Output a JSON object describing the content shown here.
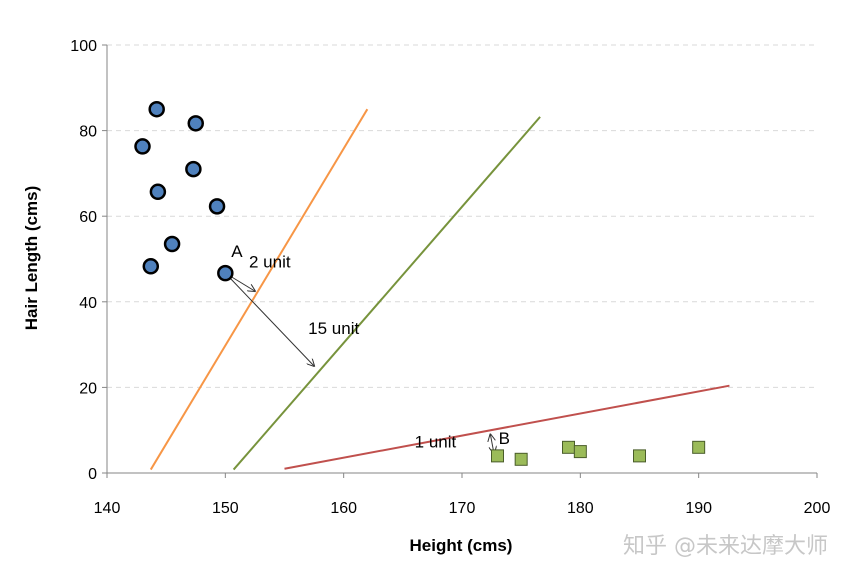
{
  "chart_data": {
    "type": "scatter",
    "xlabel": "Height (cms)",
    "ylabel": "Hair Length (cms)",
    "xlim": [
      140,
      200
    ],
    "ylim": [
      0,
      100
    ],
    "x_ticks": [
      "140",
      "150",
      "160",
      "170",
      "180",
      "190",
      "200"
    ],
    "y_ticks": [
      "0",
      "20",
      "40",
      "60",
      "80",
      "100"
    ],
    "grid": "horizontal dashed",
    "legend": "none",
    "series": [
      {
        "marker": "circle",
        "color": "#4f81bd",
        "points": [
          {
            "x": 144.2,
            "y": 85.0
          },
          {
            "x": 147.5,
            "y": 81.7
          },
          {
            "x": 143.0,
            "y": 76.3
          },
          {
            "x": 147.3,
            "y": 71.0
          },
          {
            "x": 144.3,
            "y": 65.7
          },
          {
            "x": 149.3,
            "y": 62.3
          },
          {
            "x": 145.5,
            "y": 53.5
          },
          {
            "x": 143.7,
            "y": 48.3
          },
          {
            "x": 150.0,
            "y": 46.7
          }
        ]
      },
      {
        "marker": "square",
        "color": "#9bbb59",
        "points": [
          {
            "x": 173.0,
            "y": 4.0
          },
          {
            "x": 175.0,
            "y": 3.2
          },
          {
            "x": 179.0,
            "y": 6.0
          },
          {
            "x": 180.0,
            "y": 5.0
          },
          {
            "x": 185.0,
            "y": 4.0
          },
          {
            "x": 190.0,
            "y": 6.0
          }
        ]
      }
    ],
    "lines": [
      {
        "color": "#f79646",
        "from": [
          143.7,
          0.8
        ],
        "to": [
          162.0,
          85.0
        ]
      },
      {
        "color": "#77933c",
        "from": [
          150.7,
          0.8
        ],
        "to": [
          176.6,
          83.2
        ]
      },
      {
        "color": "#c0504d",
        "from": [
          155.0,
          1.0
        ],
        "to": [
          192.6,
          20.4
        ]
      }
    ],
    "annotations": [
      {
        "text": "A",
        "x": 150.5,
        "y": 50.5
      },
      {
        "text": "2 unit",
        "x": 152.0,
        "y": 48.0
      },
      {
        "text": "15 unit",
        "x": 157.0,
        "y": 32.5
      },
      {
        "text": "1 unit",
        "x": 166.0,
        "y": 6.0
      },
      {
        "text": "B",
        "x": 173.1,
        "y": 6.8
      }
    ],
    "arrows": [
      {
        "from": [
          150.0,
          46.7
        ],
        "to": [
          152.5,
          42.5
        ]
      },
      {
        "from": [
          150.0,
          46.7
        ],
        "to": [
          157.5,
          25.0
        ]
      },
      {
        "from": [
          172.4,
          9.0
        ],
        "to": [
          172.7,
          4.6
        ]
      }
    ]
  },
  "watermark": "知乎 @未来达摩大师"
}
